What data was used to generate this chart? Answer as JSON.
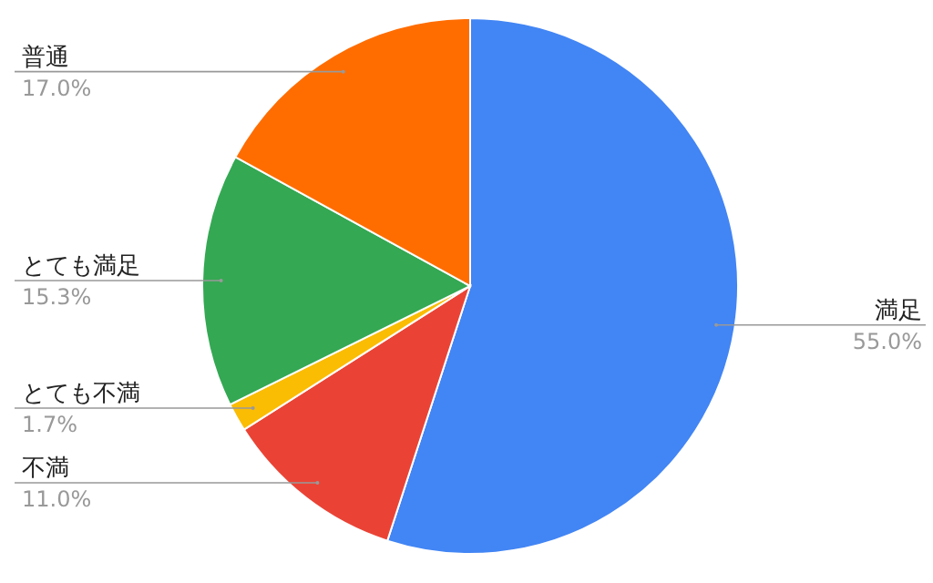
{
  "chart_data": {
    "type": "pie",
    "categories": [
      "満足",
      "不満",
      "とても不満",
      "とても満足",
      "普通"
    ],
    "values": [
      55.0,
      11.0,
      1.7,
      15.3,
      17.0
    ],
    "colors": [
      "#4285f4",
      "#ea4335",
      "#fbbc04",
      "#34a853",
      "#ff6d01"
    ],
    "value_labels": [
      "55.0%",
      "11.0%",
      "1.7%",
      "15.3%",
      "17.0%"
    ]
  }
}
